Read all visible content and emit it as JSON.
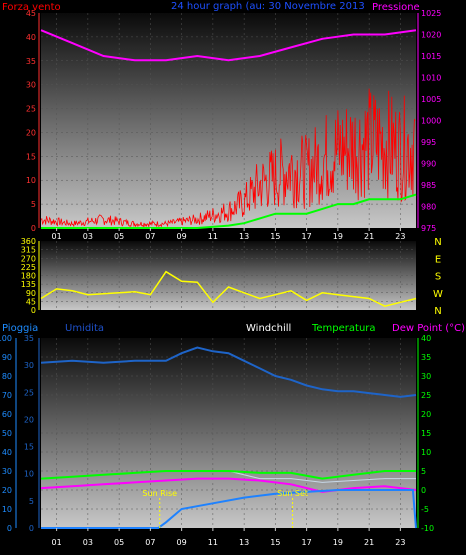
{
  "header": {
    "wind_label": "Forza vento",
    "title": "24 hour graph (au: 30 Novembre 2013",
    "pressure_label": "Pressione"
  },
  "direction_labels": [
    "N",
    "W",
    "S",
    "E",
    "N"
  ],
  "bottom_header": {
    "rain_label": "Pioggia",
    "humidity_label": "Umidita",
    "windchill_label": "Windchill",
    "temperature_label": "Temperatura",
    "dewpoint_label": "Dew Point (°C)"
  },
  "annotations": {
    "sunrise": "Sun Rise",
    "sunset": "Sun Set"
  },
  "colors": {
    "wind": "#ff0000",
    "gust_avg": "#00ff00",
    "pressure": "#ff00ff",
    "direction": "#ffff00",
    "humidity": "#1e64c8",
    "temperature": "#00ff00",
    "dewpoint": "#ff00ff",
    "windchill": "#c8d8e8",
    "rain": "#1e82ff"
  },
  "chart_data": [
    {
      "type": "line",
      "name": "wind-pressure",
      "x_ticks": [
        "01",
        "03",
        "05",
        "07",
        "09",
        "11",
        "13",
        "15",
        "17",
        "19",
        "21",
        "23"
      ],
      "y_left": {
        "ticks": [
          "0",
          "5",
          "10",
          "15",
          "20",
          "25",
          "30",
          "35",
          "40",
          "45"
        ],
        "ylim": [
          0,
          45
        ]
      },
      "y_right": {
        "ticks": [
          "975",
          "980",
          "985",
          "990",
          "995",
          "1000",
          "1005",
          "1010",
          "1015",
          "1020",
          "1025"
        ],
        "ylim": [
          975,
          1025
        ]
      },
      "series": [
        {
          "key": "wind",
          "x": [
            0,
            2,
            4,
            6,
            8,
            10,
            12,
            13,
            14,
            15,
            16,
            17,
            18,
            19,
            20,
            21,
            22,
            23,
            24
          ],
          "values": [
            2,
            1,
            2,
            1,
            1,
            2,
            4,
            6,
            10,
            12,
            14,
            13,
            16,
            18,
            19,
            20,
            20,
            18,
            20
          ]
        },
        {
          "key": "gust_avg",
          "x": [
            0,
            2,
            4,
            6,
            8,
            10,
            12,
            13,
            14,
            15,
            16,
            17,
            18,
            19,
            20,
            21,
            22,
            23,
            24
          ],
          "values": [
            0,
            0,
            0,
            0,
            0,
            0,
            0.5,
            1,
            2,
            3,
            3,
            3,
            4,
            5,
            5,
            6,
            6,
            6,
            7
          ]
        },
        {
          "key": "pressure",
          "x": [
            0,
            2,
            4,
            6,
            8,
            10,
            12,
            14,
            16,
            18,
            20,
            22,
            24
          ],
          "values": [
            1021,
            1018,
            1015,
            1014,
            1014,
            1015,
            1014,
            1015,
            1017,
            1019,
            1020,
            1020,
            1021
          ]
        }
      ]
    },
    {
      "type": "scatter",
      "name": "wind-direction",
      "y_ticks": [
        "0",
        "45",
        "90",
        "135",
        "180",
        "225",
        "270",
        "315",
        "360"
      ],
      "ylim": [
        0,
        360
      ],
      "x": [
        0,
        1,
        2,
        3,
        4,
        5,
        6,
        7,
        8,
        9,
        10,
        11,
        12,
        13,
        14,
        15,
        16,
        17,
        18,
        19,
        20,
        21,
        22,
        23,
        24
      ],
      "values": [
        60,
        110,
        100,
        80,
        85,
        90,
        95,
        80,
        200,
        150,
        145,
        40,
        120,
        90,
        60,
        80,
        100,
        50,
        90,
        80,
        70,
        60,
        20,
        40,
        60
      ]
    },
    {
      "type": "line",
      "name": "humidity-temperature",
      "y_left_rain": {
        "ticks": [
          "0",
          "10",
          "20",
          "30",
          "40",
          "50",
          "60",
          "70",
          "80",
          "90",
          "100"
        ],
        "ylim": [
          0,
          100
        ]
      },
      "y_left_humidity": {
        "ticks": [
          "0",
          "5",
          "10",
          "15",
          "20",
          "25",
          "30",
          "35"
        ],
        "ylim": [
          0,
          35
        ]
      },
      "y_right_temperature": {
        "ticks": [
          "-10",
          "-5",
          "0",
          "5",
          "10",
          "15",
          "20",
          "25",
          "30",
          "35",
          "40"
        ],
        "ylim": [
          -10,
          40
        ]
      },
      "series": [
        {
          "key": "humidity",
          "x": [
            0,
            2,
            4,
            6,
            8,
            9,
            10,
            11,
            12,
            13,
            14,
            15,
            16,
            17,
            18,
            19,
            20,
            21,
            22,
            23,
            24
          ],
          "values": [
            87,
            88,
            87,
            88,
            88,
            92,
            95,
            93,
            92,
            88,
            84,
            80,
            78,
            75,
            73,
            72,
            72,
            71,
            70,
            69,
            70
          ]
        },
        {
          "key": "temperature",
          "x": [
            0,
            2,
            4,
            6,
            8,
            10,
            12,
            14,
            16,
            18,
            20,
            22,
            24
          ],
          "values": [
            3,
            3.5,
            4,
            4.5,
            5,
            5,
            5,
            4.5,
            4.5,
            3,
            4,
            5,
            5
          ]
        },
        {
          "key": "dewpoint",
          "x": [
            0,
            2,
            4,
            6,
            8,
            10,
            12,
            14,
            16,
            18,
            20,
            22,
            24
          ],
          "values": [
            0.5,
            1,
            1.5,
            2,
            2.5,
            3,
            3,
            2.5,
            1.5,
            -0.5,
            0.5,
            1,
            0
          ]
        },
        {
          "key": "windchill",
          "x": [
            0,
            2,
            4,
            6,
            8,
            10,
            12,
            14,
            16,
            18,
            20,
            22,
            24
          ],
          "values": [
            3,
            3.5,
            4,
            4.5,
            5,
            5,
            5,
            3,
            3,
            2,
            2.5,
            3,
            3
          ]
        },
        {
          "key": "rain",
          "x": [
            0,
            7.5,
            8,
            9,
            11,
            13,
            15,
            17,
            19,
            21,
            23,
            23.8,
            24
          ],
          "values": [
            0,
            0,
            3,
            10,
            13,
            16,
            18,
            19,
            20,
            20,
            20,
            20,
            0
          ]
        }
      ]
    }
  ]
}
